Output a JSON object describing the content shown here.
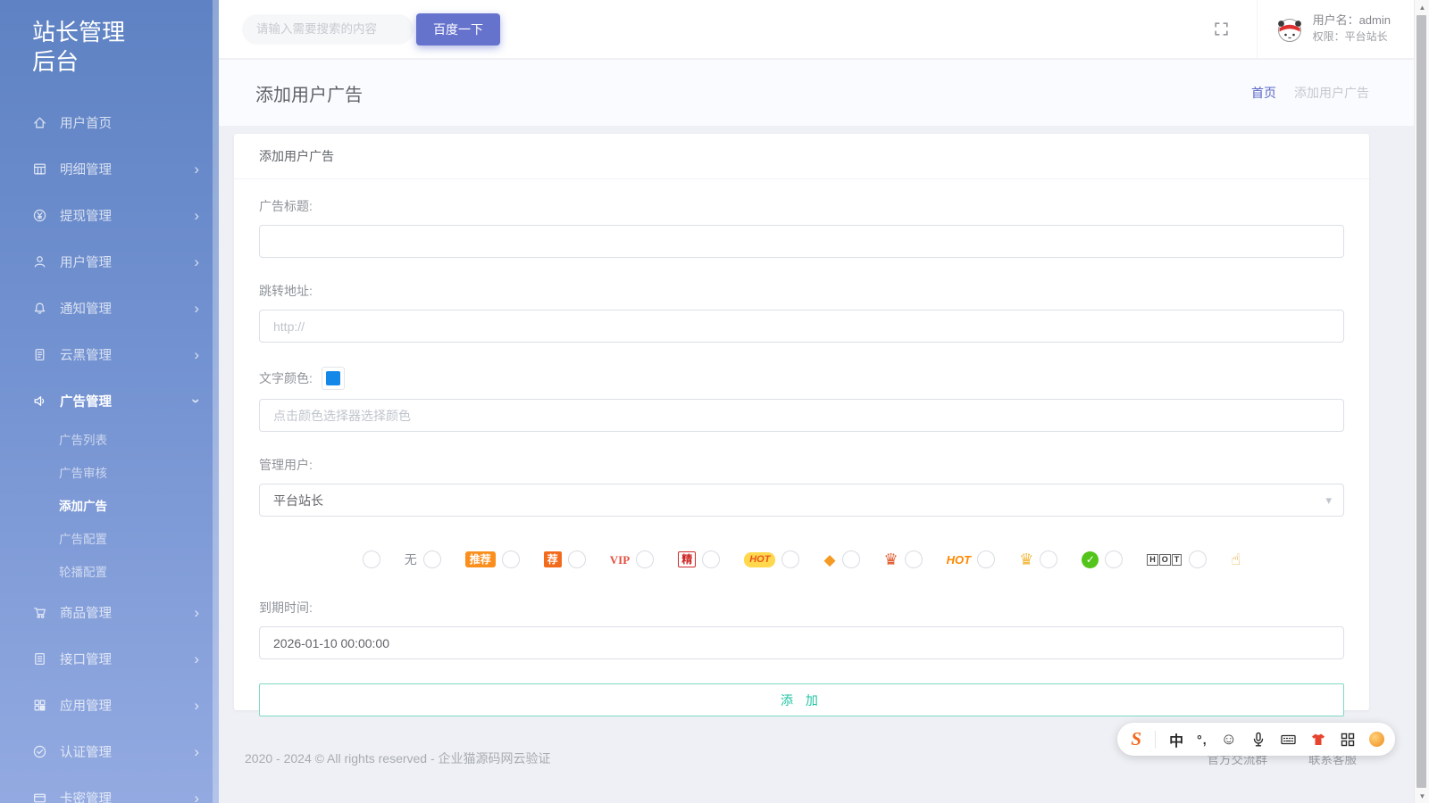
{
  "app": {
    "title": "站长管理后台"
  },
  "sidebar": {
    "items": [
      {
        "id": "user-home",
        "icon": "home-icon",
        "label": "用户首页",
        "arrow": "none"
      },
      {
        "id": "detail",
        "icon": "detail-icon",
        "label": "明细管理",
        "arrow": "right"
      },
      {
        "id": "withdraw",
        "icon": "withdraw-icon",
        "label": "提现管理",
        "arrow": "right"
      },
      {
        "id": "users",
        "icon": "user-icon",
        "label": "用户管理",
        "arrow": "right"
      },
      {
        "id": "notice",
        "icon": "notice-icon",
        "label": "通知管理",
        "arrow": "right"
      },
      {
        "id": "cloudblack",
        "icon": "clouddoc-icon",
        "label": "云黑管理",
        "arrow": "right"
      },
      {
        "id": "ads",
        "icon": "ad-icon",
        "label": "广告管理",
        "arrow": "down",
        "open": true,
        "children": [
          {
            "id": "ad-list",
            "label": "广告列表",
            "active": false
          },
          {
            "id": "ad-review",
            "label": "广告审核",
            "active": false
          },
          {
            "id": "ad-add",
            "label": "添加广告",
            "active": true
          },
          {
            "id": "ad-config",
            "label": "广告配置",
            "active": false
          },
          {
            "id": "carousel-config",
            "label": "轮播配置",
            "active": false
          }
        ]
      },
      {
        "id": "goods",
        "icon": "goods-icon",
        "label": "商品管理",
        "arrow": "right"
      },
      {
        "id": "api",
        "icon": "api-icon",
        "label": "接口管理",
        "arrow": "right"
      },
      {
        "id": "apps",
        "icon": "app-icon",
        "label": "应用管理",
        "arrow": "right"
      },
      {
        "id": "auth",
        "icon": "auth-icon",
        "label": "认证管理",
        "arrow": "right"
      },
      {
        "id": "cardkey",
        "icon": "card-icon",
        "label": "卡密管理",
        "arrow": "right"
      }
    ]
  },
  "topbar": {
    "search_placeholder": "请输入需要搜索的内容",
    "search_button_label": "百度一下",
    "user_name_line": "用户名：admin",
    "user_role_line": "权限：平台站长"
  },
  "page": {
    "title": "添加用户广告",
    "breadcrumb_home": "首页",
    "breadcrumb_current": "添加用户广告"
  },
  "card": {
    "header": "添加用户广告"
  },
  "form": {
    "title_label": "广告标题:",
    "title_value": "",
    "url_label": "跳转地址:",
    "url_placeholder": "http://",
    "color_label": "文字颜色:",
    "color_swatch": "#1488e9",
    "color_placeholder": "点击颜色选择器选择颜色",
    "admin_label": "管理用户:",
    "admin_value": "平台站长",
    "expire_label": "到期时间:",
    "expire_value": "2026-01-10 00:00:00",
    "submit_label": "添 加",
    "badge_options": [
      {
        "kind": "blank",
        "label": ""
      },
      {
        "kind": "plain",
        "label": "无"
      },
      {
        "kind": "pill-orange",
        "label": "推荐"
      },
      {
        "kind": "square-orange",
        "label": "荐"
      },
      {
        "kind": "vip",
        "label": "VIP"
      },
      {
        "kind": "outline-red",
        "label": "精"
      },
      {
        "kind": "pill-yellow",
        "label": "HOT"
      },
      {
        "kind": "gem",
        "label": "◆"
      },
      {
        "kind": "crown-red",
        "label": "♛"
      },
      {
        "kind": "hot-text",
        "label": "HOT"
      },
      {
        "kind": "crown-gold",
        "label": "♛"
      },
      {
        "kind": "check-green",
        "label": "✓"
      },
      {
        "kind": "boxed",
        "label": "HOT"
      },
      {
        "kind": "thumb",
        "label": "☝",
        "no_radio": true
      }
    ]
  },
  "footer": {
    "copyright": "2020 - 2024 © All rights reserved - 企业猫源码网云验证",
    "links": [
      "官方交流群",
      "联系客服"
    ]
  },
  "ime": {
    "icons": [
      {
        "name": "sogou-logo-icon",
        "glyph": "S"
      },
      {
        "name": "divider"
      },
      {
        "name": "chinese-mode-icon",
        "glyph": "中"
      },
      {
        "name": "punctuation-icon",
        "glyph": "°,"
      },
      {
        "name": "emoji-picker-icon",
        "glyph": "☺"
      },
      {
        "name": "voice-input-icon"
      },
      {
        "name": "virtual-keyboard-icon"
      },
      {
        "name": "skin-center-icon"
      },
      {
        "name": "toolbox-icon"
      },
      {
        "name": "hidden-emoji-icon"
      }
    ]
  }
}
